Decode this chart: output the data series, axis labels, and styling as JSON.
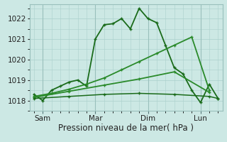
{
  "xlabel": "Pression niveau de la mer( hPa )",
  "ylim": [
    1017.5,
    1022.7
  ],
  "xlim": [
    -2,
    86
  ],
  "xticks": [
    4,
    28,
    52,
    76
  ],
  "xticklabels": [
    "Sam",
    "Mar",
    "Dim",
    "Lun"
  ],
  "yticks": [
    1018,
    1019,
    1020,
    1021,
    1022
  ],
  "background_color": "#cce8e4",
  "grid_color": "#aad0cc",
  "vline_color": "#99c0bc",
  "series": [
    {
      "x": [
        0,
        4,
        8,
        12,
        16,
        20,
        24,
        28,
        32,
        36,
        40,
        44,
        48,
        52,
        56,
        60,
        64,
        68,
        72,
        76,
        80,
        84
      ],
      "y": [
        1018.3,
        1018.0,
        1018.5,
        1018.7,
        1018.9,
        1019.0,
        1018.7,
        1021.0,
        1021.7,
        1021.75,
        1022.0,
        1021.5,
        1022.5,
        1022.0,
        1021.8,
        1020.7,
        1019.6,
        1019.3,
        1018.5,
        1017.9,
        1018.8,
        1018.1
      ],
      "color": "#1a6b1a",
      "lw": 1.3,
      "marker": "+"
    },
    {
      "x": [
        0,
        8,
        16,
        24,
        32,
        40,
        48,
        56,
        64,
        72,
        80
      ],
      "y": [
        1018.2,
        1018.35,
        1018.55,
        1018.8,
        1019.1,
        1019.5,
        1019.9,
        1020.3,
        1020.7,
        1021.1,
        1018.5
      ],
      "color": "#2a8a2a",
      "lw": 1.3,
      "marker": "+"
    },
    {
      "x": [
        0,
        16,
        32,
        48,
        64,
        80
      ],
      "y": [
        1018.15,
        1018.45,
        1018.75,
        1019.05,
        1019.4,
        1018.4
      ],
      "color": "#2a8a2a",
      "lw": 1.3,
      "marker": "+"
    },
    {
      "x": [
        0,
        16,
        32,
        48,
        64,
        80,
        84
      ],
      "y": [
        1018.1,
        1018.2,
        1018.3,
        1018.35,
        1018.3,
        1018.2,
        1018.1
      ],
      "color": "#1a6b1a",
      "lw": 1.1,
      "marker": "+"
    }
  ],
  "vlines": [
    4,
    28,
    52,
    76
  ],
  "fontsize_xlabel": 8.5,
  "fontsize_ytick": 7.5,
  "fontsize_xtick": 7.5
}
